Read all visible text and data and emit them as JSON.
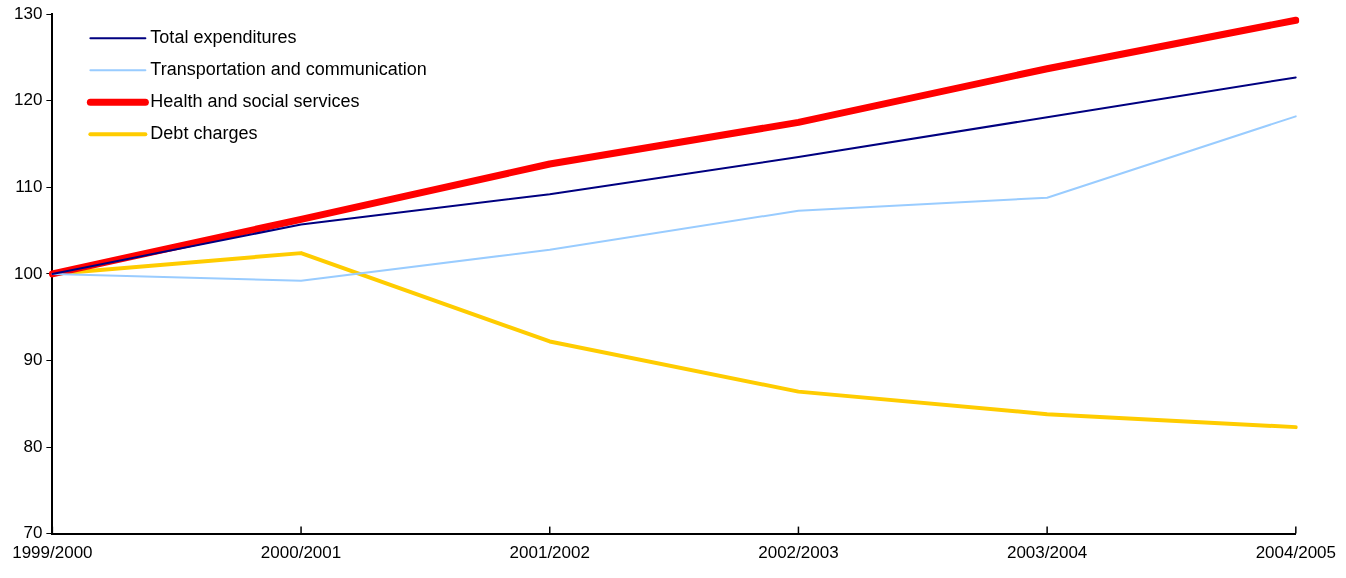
{
  "chart_data": {
    "type": "line",
    "categories": [
      "1999/2000",
      "2000/2001",
      "2001/2002",
      "2002/2003",
      "2003/2004",
      "2004/2005"
    ],
    "series": [
      {
        "name": "Total expenditures",
        "color": "#000080",
        "values": [
          100,
          105.7,
          109.2,
          113.5,
          118.1,
          122.7
        ]
      },
      {
        "name": "Transportation and communication",
        "color": "#99ccff",
        "values": [
          100,
          99.2,
          102.8,
          107.3,
          108.8,
          118.2
        ]
      },
      {
        "name": "Health and social services",
        "color": "#ff0000",
        "values": [
          100,
          106.3,
          112.7,
          117.5,
          123.7,
          129.3
        ]
      },
      {
        "name": "Debt charges",
        "color": "#ffcc00",
        "values": [
          100,
          102.4,
          92.2,
          86.4,
          83.8,
          82.3
        ]
      }
    ],
    "ylim": [
      70,
      130
    ],
    "yticks": [
      70,
      80,
      90,
      100,
      110,
      120,
      130
    ],
    "grid": false,
    "legend": "top left",
    "marker": "none",
    "line_style": "solid"
  }
}
